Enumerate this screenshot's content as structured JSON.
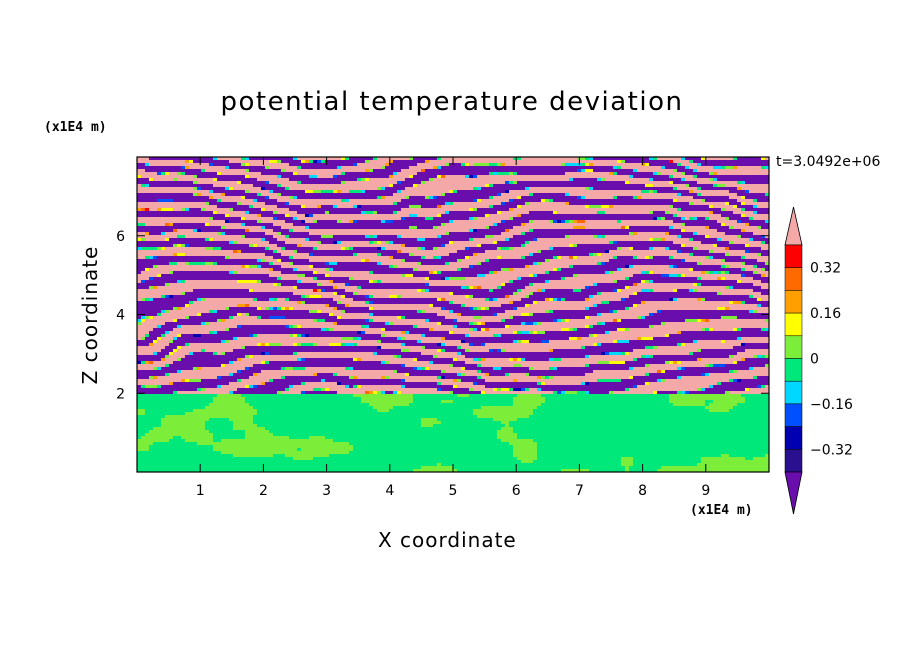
{
  "chart_data": {
    "type": "heatmap",
    "title": "potential temperature deviation",
    "xlabel": "X coordinate",
    "ylabel": "Z coordinate",
    "x_unit": "(x1E4 m)",
    "y_unit": "(x1E4 m)",
    "annotation": "t=3.0492e+06",
    "xlim": [
      0,
      10
    ],
    "ylim": [
      0,
      8
    ],
    "x_ticks": [
      1,
      2,
      3,
      4,
      5,
      6,
      7,
      8,
      9
    ],
    "y_ticks": [
      2,
      4,
      6
    ],
    "colorbar": {
      "levels": [
        -0.48,
        -0.4,
        -0.32,
        -0.24,
        -0.16,
        -0.08,
        0,
        0.08,
        0.16,
        0.24,
        0.32,
        0.4,
        0.48
      ],
      "tick_labels": [
        "0.32",
        "0.16",
        "0",
        "−0.16",
        "−0.32"
      ],
      "tick_values": [
        0.32,
        0.16,
        0,
        -0.16,
        -0.32
      ],
      "colors": [
        "#6a0dad",
        "#2a0f8f",
        "#0000b0",
        "#0050ff",
        "#00d8ff",
        "#00e87a",
        "#7cee3a",
        "#ffff00",
        "#ffa000",
        "#ff6a00",
        "#ff0000",
        "#f4a8a8"
      ],
      "extend": "both"
    },
    "structure": {
      "lower_region_z_max": 2.0,
      "lower_region_values": "near 0 (between -0.08 and 0.08)",
      "upper_region": "alternating horizontal layers of strong positive (> 0.48) and strong negative (< -0.48) deviation"
    }
  }
}
